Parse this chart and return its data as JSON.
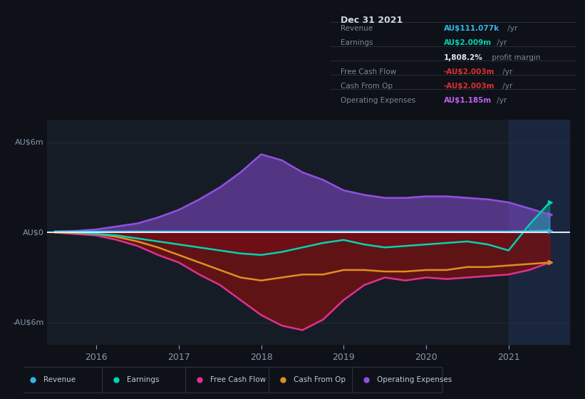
{
  "bg_color": "#0e1117",
  "plot_bg_color": "#161c26",
  "highlight_bg": "#1a2535",
  "years_x": [
    2015.5,
    2015.75,
    2016.0,
    2016.25,
    2016.5,
    2016.75,
    2017.0,
    2017.25,
    2017.5,
    2017.75,
    2018.0,
    2018.25,
    2018.5,
    2018.75,
    2019.0,
    2019.25,
    2019.5,
    2019.75,
    2020.0,
    2020.25,
    2020.5,
    2020.75,
    2021.0,
    2021.25,
    2021.5
  ],
  "revenue": [
    0.05,
    0.05,
    0.05,
    0.05,
    0.05,
    0.05,
    0.05,
    0.05,
    0.05,
    0.05,
    0.05,
    0.05,
    0.05,
    0.05,
    0.05,
    0.05,
    0.05,
    0.05,
    0.05,
    0.05,
    0.05,
    0.05,
    0.05,
    0.07,
    0.111
  ],
  "earnings": [
    0.05,
    0.0,
    -0.1,
    -0.2,
    -0.4,
    -0.6,
    -0.8,
    -1.0,
    -1.2,
    -1.4,
    -1.5,
    -1.3,
    -1.0,
    -0.7,
    -0.5,
    -0.8,
    -1.0,
    -0.9,
    -0.8,
    -0.7,
    -0.6,
    -0.8,
    -1.2,
    0.5,
    2.009
  ],
  "free_cash_flow": [
    0.0,
    -0.1,
    -0.2,
    -0.5,
    -0.9,
    -1.5,
    -2.0,
    -2.8,
    -3.5,
    -4.5,
    -5.5,
    -6.2,
    -6.5,
    -5.8,
    -4.5,
    -3.5,
    -3.0,
    -3.2,
    -3.0,
    -3.1,
    -3.0,
    -2.9,
    -2.8,
    -2.5,
    -2.003
  ],
  "cash_from_op": [
    0.0,
    -0.05,
    -0.1,
    -0.3,
    -0.6,
    -1.0,
    -1.5,
    -2.0,
    -2.5,
    -3.0,
    -3.2,
    -3.0,
    -2.8,
    -2.8,
    -2.5,
    -2.5,
    -2.6,
    -2.6,
    -2.5,
    -2.5,
    -2.3,
    -2.3,
    -2.2,
    -2.1,
    -2.003
  ],
  "operating_expenses": [
    0.05,
    0.1,
    0.2,
    0.4,
    0.6,
    1.0,
    1.5,
    2.2,
    3.0,
    4.0,
    5.2,
    4.8,
    4.0,
    3.5,
    2.8,
    2.5,
    2.3,
    2.3,
    2.4,
    2.4,
    2.3,
    2.2,
    2.0,
    1.6,
    1.185
  ],
  "revenue_color": "#2eb8e6",
  "earnings_color": "#00d4b4",
  "fcf_color": "#e03090",
  "cfop_color": "#e09020",
  "opex_color": "#9050e0",
  "ax_label_color": "#8a9bb0",
  "grid_color": "#1e2a3a",
  "zero_line_color": "#e0e8f0",
  "yticks": [
    -6,
    0,
    6
  ],
  "ylabels": [
    "-AU$6m",
    "AU$0",
    "AU$6m"
  ],
  "xticks": [
    2016,
    2017,
    2018,
    2019,
    2020,
    2021
  ],
  "xlim": [
    2015.4,
    2021.75
  ],
  "ylim": [
    -7.5,
    7.5
  ],
  "legend_items": [
    "Revenue",
    "Earnings",
    "Free Cash Flow",
    "Cash From Op",
    "Operating Expenses"
  ],
  "legend_colors": [
    "#2eb8e6",
    "#00d4b4",
    "#e03090",
    "#e09020",
    "#9050e0"
  ],
  "info_title": "Dec 31 2021",
  "info_rows": [
    {
      "label": "Revenue",
      "value": "AU$111.077k",
      "suffix": " /yr",
      "value_color": "#2eb8e6"
    },
    {
      "label": "Earnings",
      "value": "AU$2.009m",
      "suffix": " /yr",
      "value_color": "#00d4b4"
    },
    {
      "label": "",
      "value": "1,808.2%",
      "suffix": " profit margin",
      "value_color": "#e0e8f0"
    },
    {
      "label": "Free Cash Flow",
      "value": "-AU$2.003m",
      "suffix": " /yr",
      "value_color": "#e03030"
    },
    {
      "label": "Cash From Op",
      "value": "-AU$2.003m",
      "suffix": " /yr",
      "value_color": "#e03030"
    },
    {
      "label": "Operating Expenses",
      "value": "AU$1.185m",
      "suffix": " /yr",
      "value_color": "#c060f0"
    }
  ],
  "highlight_start": 2021.0,
  "highlight_end": 2021.75
}
